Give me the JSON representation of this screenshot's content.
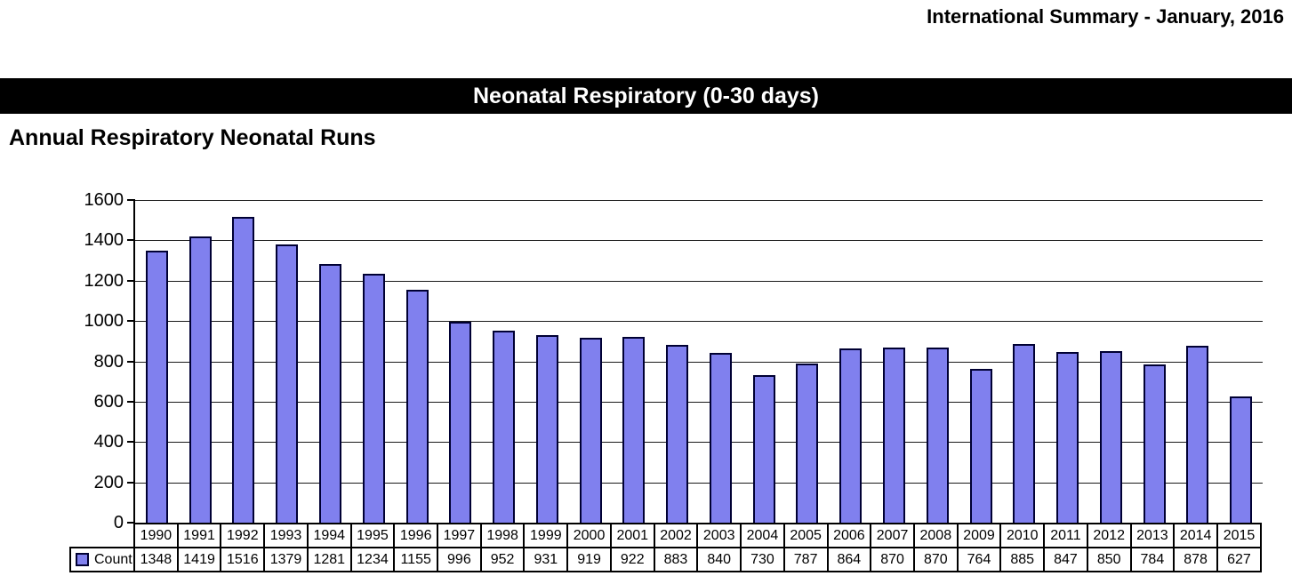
{
  "header": {
    "summary_title": "International Summary - January, 2016"
  },
  "banner": {
    "title": "Neonatal Respiratory (0-30 days)"
  },
  "section": {
    "title": "Annual Respiratory Neonatal Runs"
  },
  "chart_data": {
    "type": "bar",
    "title": "Annual Respiratory Neonatal Runs",
    "xlabel": "",
    "ylabel": "",
    "categories": [
      "1990",
      "1991",
      "1992",
      "1993",
      "1994",
      "1995",
      "1996",
      "1997",
      "1998",
      "1999",
      "2000",
      "2001",
      "2002",
      "2003",
      "2004",
      "2005",
      "2006",
      "2007",
      "2008",
      "2009",
      "2010",
      "2011",
      "2012",
      "2013",
      "2014",
      "2015"
    ],
    "series": [
      {
        "name": "Count",
        "values": [
          1348,
          1419,
          1516,
          1379,
          1281,
          1234,
          1155,
          996,
          952,
          931,
          919,
          922,
          883,
          840,
          730,
          787,
          864,
          870,
          870,
          764,
          885,
          847,
          850,
          784,
          878,
          627
        ]
      }
    ],
    "ylim": [
      0,
      1600
    ],
    "yticks": [
      0,
      200,
      400,
      600,
      800,
      1000,
      1200,
      1400,
      1600
    ],
    "grid": true,
    "legend_position": "table-bottom-left",
    "colors": {
      "bar_fill": "#8080EE",
      "bar_border": "#000033",
      "grid": "#1a1a1a"
    }
  }
}
